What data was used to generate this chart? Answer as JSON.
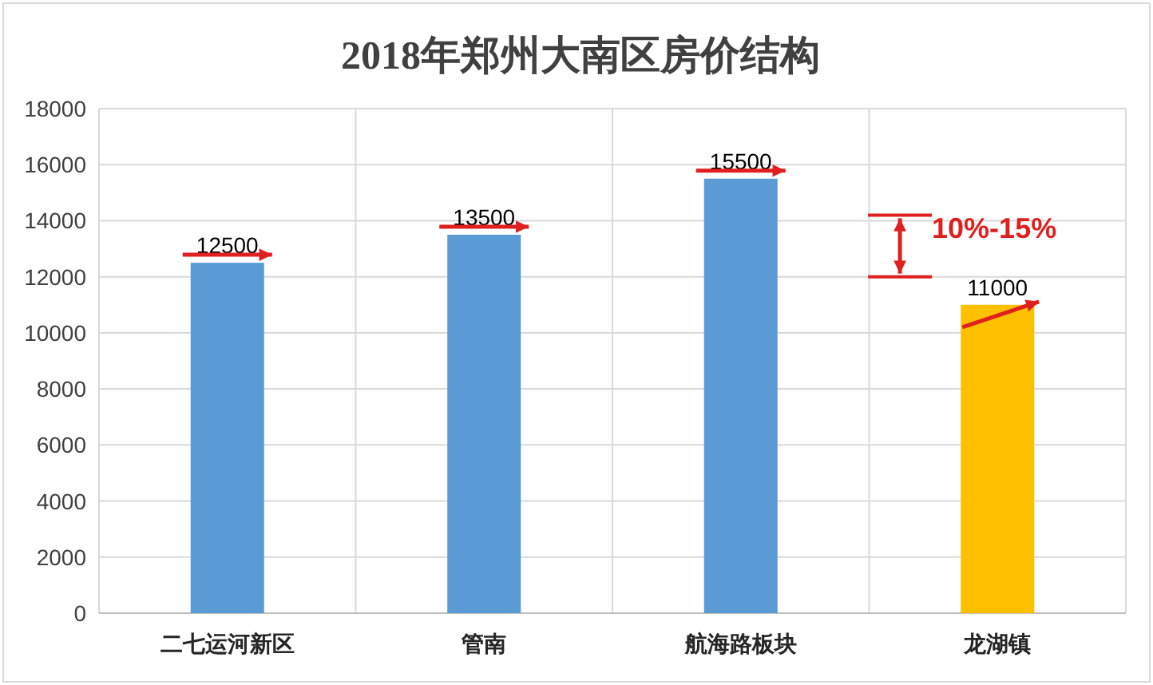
{
  "chart_data": {
    "type": "bar",
    "title": "2018年郑州大南区房价结构",
    "categories": [
      "二七运河新区",
      "管南",
      "航海路板块",
      "龙湖镇"
    ],
    "values": [
      12500,
      13500,
      15500,
      11000
    ],
    "colors": [
      "#5b9bd5",
      "#5b9bd5",
      "#5b9bd5",
      "#ffc000"
    ],
    "ylim": [
      0,
      18000
    ],
    "yticks": [
      0,
      2000,
      4000,
      6000,
      8000,
      10000,
      12000,
      14000,
      16000,
      18000
    ],
    "grid": true,
    "data_labels": true,
    "annotations": [
      "10%-15%"
    ]
  }
}
